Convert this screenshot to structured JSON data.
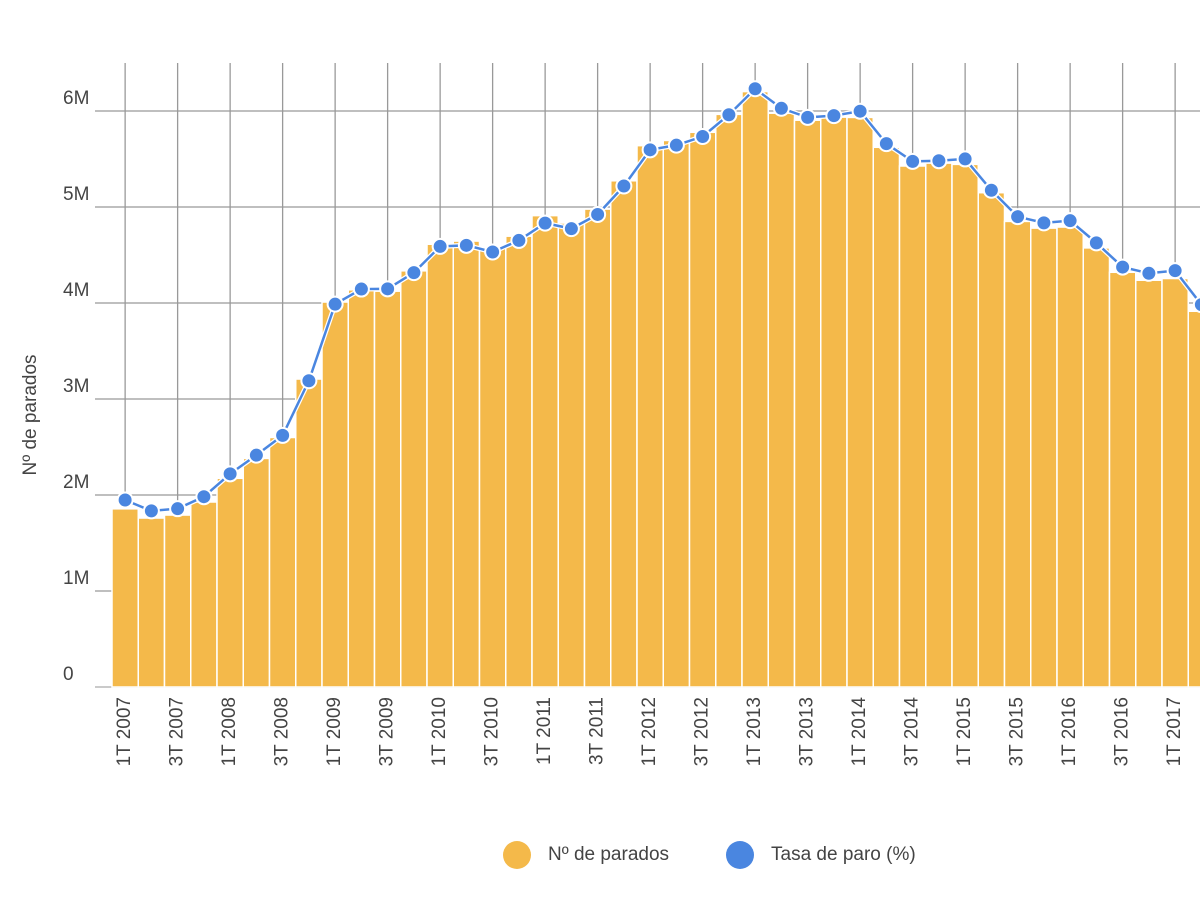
{
  "chart_data": {
    "type": "bar",
    "y_label": "Nº de parados",
    "categories": [
      "1T 2007",
      null,
      "3T 2007",
      null,
      "1T 2008",
      null,
      "3T 2008",
      null,
      "1T 2009",
      null,
      "3T 2009",
      null,
      "1T 2010",
      null,
      "3T 2010",
      null,
      "1T 2011",
      null,
      "3T 2011",
      null,
      "1T 2012",
      null,
      "3T 2012",
      null,
      "1T 2013",
      null,
      "3T 2013",
      null,
      "1T 2014",
      null,
      "3T 2014",
      null,
      "1T 2015",
      null,
      "3T 2015",
      null,
      "1T 2016",
      null,
      "3T 2016",
      null,
      "1T 2017",
      null
    ],
    "series": [
      {
        "name": "Nº de parados",
        "color": "#f4b94a",
        "values": [
          1856000,
          1760000,
          1791000,
          1927000,
          2174000,
          2381000,
          2599000,
          3208000,
          4010000,
          4137000,
          4123000,
          4335000,
          4612000,
          4645000,
          4574000,
          4696000,
          4910000,
          4833000,
          4978000,
          5273000,
          5639000,
          5693000,
          5778000,
          5965000,
          6202000,
          5977000,
          5904000,
          5936000,
          5933000,
          5622000,
          5427000,
          5457000,
          5444000,
          5149000,
          4850000,
          4780000,
          4791000,
          4574000,
          4320000,
          4237000,
          4255000,
          3914000
        ]
      },
      {
        "name": "Tasa de paro (%)",
        "color": "#4a86e0",
        "type": "line",
        "axis": "y2",
        "values": [
          8.42,
          7.93,
          8.03,
          8.57,
          9.6,
          10.44,
          11.33,
          13.79,
          17.24,
          17.92,
          17.93,
          18.66,
          19.84,
          19.89,
          19.59,
          20.11,
          20.89,
          20.64,
          21.28,
          22.56,
          24.19,
          24.4,
          24.79,
          25.77,
          26.94,
          26.06,
          25.65,
          25.73,
          25.93,
          24.47,
          23.67,
          23.7,
          23.78,
          22.37,
          21.18,
          20.9,
          21.0,
          20.0,
          18.91,
          18.63,
          18.75,
          17.22
        ]
      }
    ],
    "ylim": [
      0,
      6500000
    ],
    "yticks": [
      0,
      {
        "value": 1000000,
        "label": "1M"
      },
      {
        "value": 2000000,
        "label": "2M"
      },
      {
        "value": 3000000,
        "label": "3M"
      },
      {
        "value": 4000000,
        "label": "4M"
      },
      {
        "value": 5000000,
        "label": "5M"
      },
      {
        "value": 6000000,
        "label": "6M"
      }
    ],
    "y2lim": [
      0,
      28.1
    ],
    "grid": true,
    "legend": "bottom"
  }
}
